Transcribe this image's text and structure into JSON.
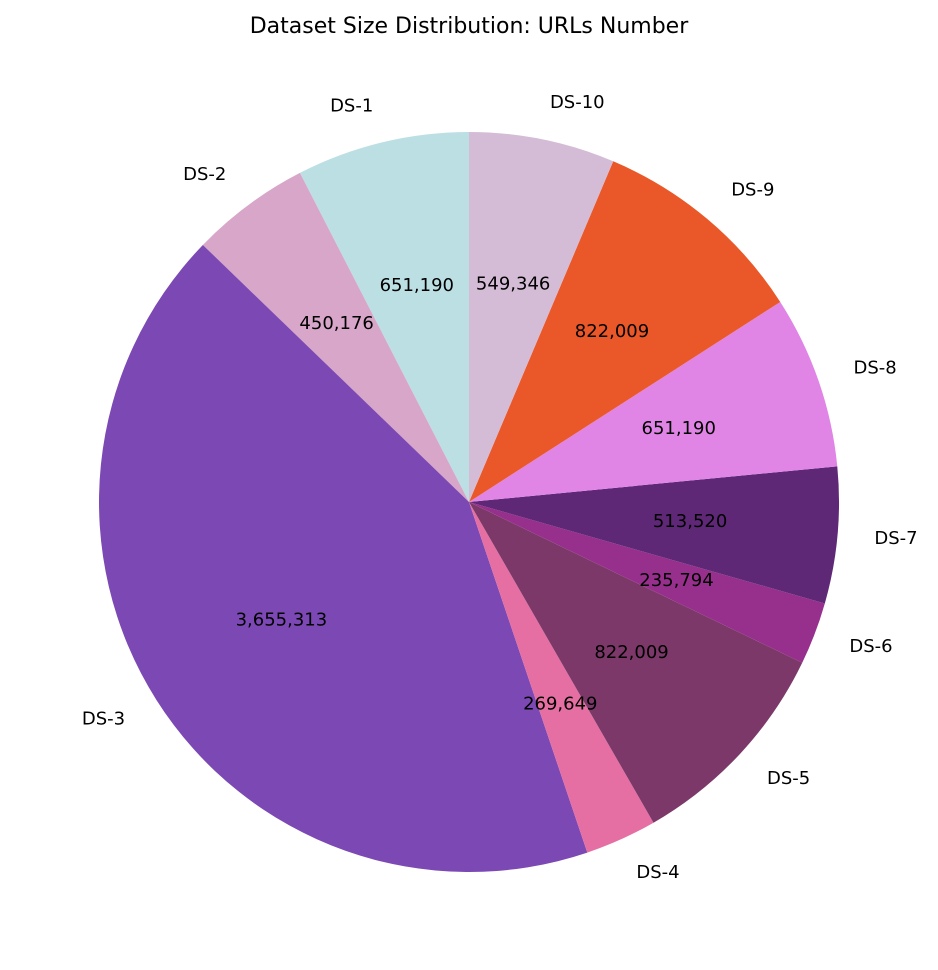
{
  "chart_data": {
    "type": "pie",
    "title": "Dataset Size Distribution: URLs Number",
    "categories": [
      "DS-1",
      "DS-2",
      "DS-3",
      "DS-4",
      "DS-5",
      "DS-6",
      "DS-7",
      "DS-8",
      "DS-9",
      "DS-10"
    ],
    "values": [
      651190,
      450176,
      3655313,
      269649,
      822009,
      235794,
      513520,
      651190,
      822009,
      549346
    ],
    "value_labels": [
      "651,190",
      "450,176",
      "3,655,313",
      "269,649",
      "822,009",
      "235,794",
      "513,520",
      "651,190",
      "822,009",
      "549,346"
    ],
    "colors": [
      "#bcdfe4",
      "#d7a6c9",
      "#7b48b4",
      "#e56fa3",
      "#7b3869",
      "#972f8c",
      "#5e2877",
      "#e085e6",
      "#ea5728",
      "#d4bcd6"
    ],
    "start_angle_deg": 90,
    "direction": "counterclockwise",
    "legend": "none",
    "grid": false
  }
}
